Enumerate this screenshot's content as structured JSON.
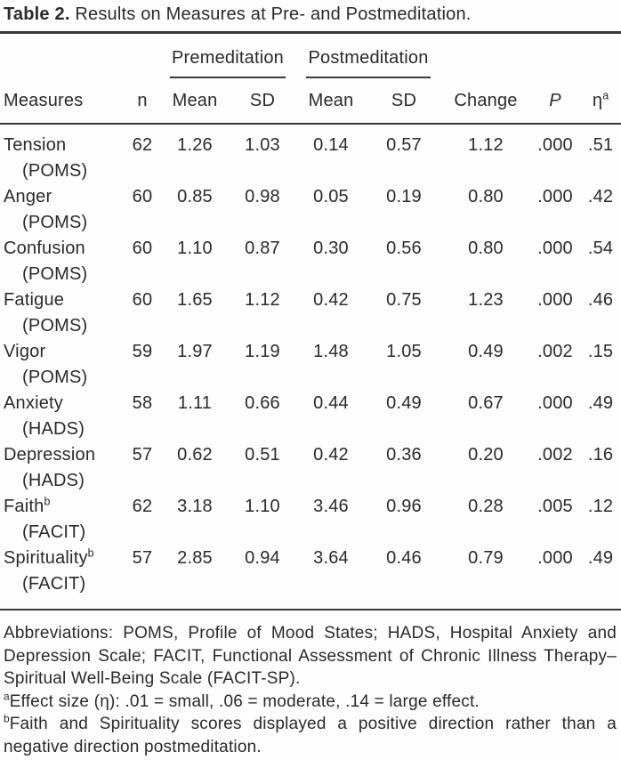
{
  "colors": {
    "ink": "#2b2a2c",
    "rule": "#3a383a",
    "background": "#fdfdfd"
  },
  "title": {
    "number_label": "Table 2.",
    "text": " Results on Measures at Pre- and Postmeditation."
  },
  "table": {
    "spanners": [
      {
        "label": "Premeditation"
      },
      {
        "label": "Postmeditation"
      }
    ],
    "columns": {
      "measures": "Measures",
      "n": "n",
      "pre_mean": "Mean",
      "pre_sd": "SD",
      "post_mean": "Mean",
      "post_sd": "SD",
      "change": "Change",
      "p": "P",
      "eta": "η",
      "eta_sup": "a"
    },
    "rows": [
      {
        "measure": "Tension",
        "measure_sup": "",
        "scale": "(POMS)",
        "n": "62",
        "pre_mean": "1.26",
        "pre_sd": "1.03",
        "post_mean": "0.14",
        "post_sd": "0.57",
        "change": "1.12",
        "p": ".000",
        "eta": ".51"
      },
      {
        "measure": "Anger",
        "measure_sup": "",
        "scale": "(POMS)",
        "n": "60",
        "pre_mean": "0.85",
        "pre_sd": "0.98",
        "post_mean": "0.05",
        "post_sd": "0.19",
        "change": "0.80",
        "p": ".000",
        "eta": ".42"
      },
      {
        "measure": "Confusion",
        "measure_sup": "",
        "scale": "(POMS)",
        "n": "60",
        "pre_mean": "1.10",
        "pre_sd": "0.87",
        "post_mean": "0.30",
        "post_sd": "0.56",
        "change": "0.80",
        "p": ".000",
        "eta": ".54"
      },
      {
        "measure": "Fatigue",
        "measure_sup": "",
        "scale": "(POMS)",
        "n": "60",
        "pre_mean": "1.65",
        "pre_sd": "1.12",
        "post_mean": "0.42",
        "post_sd": "0.75",
        "change": "1.23",
        "p": ".000",
        "eta": ".46"
      },
      {
        "measure": "Vigor",
        "measure_sup": "",
        "scale": "(POMS)",
        "n": "59",
        "pre_mean": "1.97",
        "pre_sd": "1.19",
        "post_mean": "1.48",
        "post_sd": "1.05",
        "change": "0.49",
        "p": ".002",
        "eta": ".15"
      },
      {
        "measure": "Anxiety",
        "measure_sup": "",
        "scale": "(HADS)",
        "n": "58",
        "pre_mean": "1.11",
        "pre_sd": "0.66",
        "post_mean": "0.44",
        "post_sd": "0.49",
        "change": "0.67",
        "p": ".000",
        "eta": ".49"
      },
      {
        "measure": "Depression",
        "measure_sup": "",
        "scale": "(HADS)",
        "n": "57",
        "pre_mean": "0.62",
        "pre_sd": "0.51",
        "post_mean": "0.42",
        "post_sd": "0.36",
        "change": "0.20",
        "p": ".002",
        "eta": ".16"
      },
      {
        "measure": "Faith",
        "measure_sup": "b",
        "scale": "(FACIT)",
        "n": "62",
        "pre_mean": "3.18",
        "pre_sd": "1.10",
        "post_mean": "3.46",
        "post_sd": "0.96",
        "change": "0.28",
        "p": ".005",
        "eta": ".12"
      },
      {
        "measure": "Spirituality",
        "measure_sup": "b",
        "scale": "(FACIT)",
        "n": "57",
        "pre_mean": "2.85",
        "pre_sd": "0.94",
        "post_mean": "3.64",
        "post_sd": "0.46",
        "change": "0.79",
        "p": ".000",
        "eta": ".49"
      }
    ]
  },
  "footnotes": [
    {
      "sup": "",
      "text": "Abbreviations: POMS, Profile of Mood States; HADS, Hospital Anxiety and Depression Scale; FACIT, Functional Assessment of Chronic Illness Therapy–Spiritual Well-Being Scale (FACIT-SP)."
    },
    {
      "sup": "a",
      "text": "Effect size (η): .01 = small, .06 = moderate, .14 = large effect."
    },
    {
      "sup": "b",
      "text": "Faith and Spirituality scores displayed a positive direction rather than a negative direction postmeditation."
    }
  ]
}
